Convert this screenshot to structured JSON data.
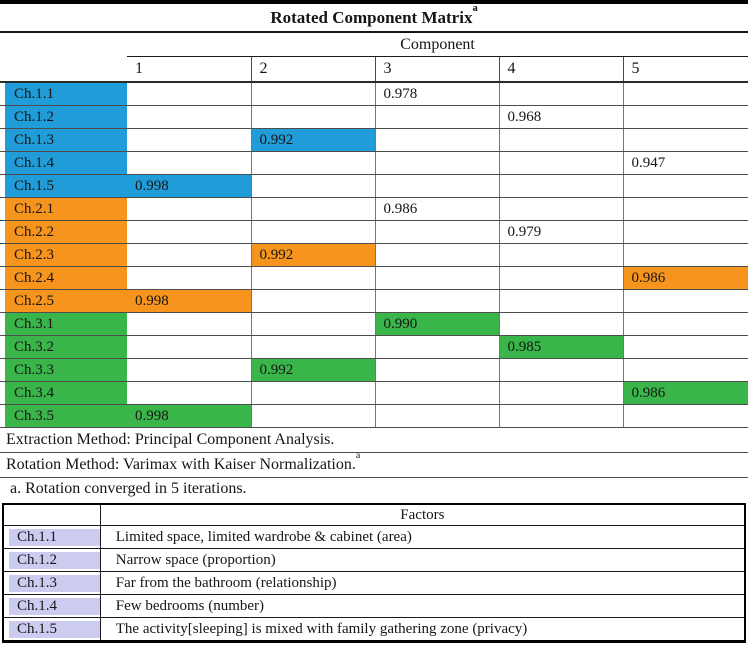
{
  "colors": {
    "blue": "#209CD8",
    "orange": "#F7941D",
    "green": "#3AB54A",
    "lavender": "#CCCCF0"
  },
  "matrix_table": {
    "title": "Rotated Component Matrix",
    "title_superscript": "a",
    "column_group_label": "Component",
    "columns": [
      "1",
      "2",
      "3",
      "4",
      "5"
    ],
    "rows": [
      {
        "label": "Ch.1.1",
        "group_color": "blue",
        "value": "0.978",
        "value_col": 3,
        "value_highlighted": false
      },
      {
        "label": "Ch.1.2",
        "group_color": "blue",
        "value": "0.968",
        "value_col": 4,
        "value_highlighted": false
      },
      {
        "label": "Ch.1.3",
        "group_color": "blue",
        "value": "0.992",
        "value_col": 2,
        "value_highlighted": true
      },
      {
        "label": "Ch.1.4",
        "group_color": "blue",
        "value": "0.947",
        "value_col": 5,
        "value_highlighted": false
      },
      {
        "label": "Ch.1.5",
        "group_color": "blue",
        "value": "0.998",
        "value_col": 1,
        "value_highlighted": true
      },
      {
        "label": "Ch.2.1",
        "group_color": "orange",
        "value": "0.986",
        "value_col": 3,
        "value_highlighted": false
      },
      {
        "label": "Ch.2.2",
        "group_color": "orange",
        "value": "0.979",
        "value_col": 4,
        "value_highlighted": false
      },
      {
        "label": "Ch.2.3",
        "group_color": "orange",
        "value": "0.992",
        "value_col": 2,
        "value_highlighted": true
      },
      {
        "label": "Ch.2.4",
        "group_color": "orange",
        "value": "0.986",
        "value_col": 5,
        "value_highlighted": true
      },
      {
        "label": "Ch.2.5",
        "group_color": "orange",
        "value": "0.998",
        "value_col": 1,
        "value_highlighted": true
      },
      {
        "label": "Ch.3.1",
        "group_color": "green",
        "value": "0.990",
        "value_col": 3,
        "value_highlighted": true
      },
      {
        "label": "Ch.3.2",
        "group_color": "green",
        "value": "0.985",
        "value_col": 4,
        "value_highlighted": true
      },
      {
        "label": "Ch.3.3",
        "group_color": "green",
        "value": "0.992",
        "value_col": 2,
        "value_highlighted": true
      },
      {
        "label": "Ch.3.4",
        "group_color": "green",
        "value": "0.986",
        "value_col": 5,
        "value_highlighted": true
      },
      {
        "label": "Ch.3.5",
        "group_color": "green",
        "value": "0.998",
        "value_col": 1,
        "value_highlighted": true
      }
    ],
    "footers": [
      {
        "text": "Extraction Method: Principal Component Analysis."
      },
      {
        "text": "Rotation Method: Varimax with Kaiser Normalization.",
        "sup": "a"
      },
      {
        "text": "a. Rotation converged in 5 iterations."
      }
    ]
  },
  "factors_table": {
    "header": "Factors",
    "rows": [
      {
        "label": "Ch.1.1",
        "factor": "Limited space, limited wardrobe & cabinet (area)"
      },
      {
        "label": "Ch.1.2",
        "factor": "Narrow space (proportion)"
      },
      {
        "label": "Ch.1.3",
        "factor": "Far from the bathroom (relationship)"
      },
      {
        "label": "Ch.1.4",
        "factor": "Few bedrooms (number)"
      },
      {
        "label": "Ch.1.5",
        "factor": "The activity[sleeping] is mixed with family gathering zone (privacy)"
      }
    ]
  }
}
